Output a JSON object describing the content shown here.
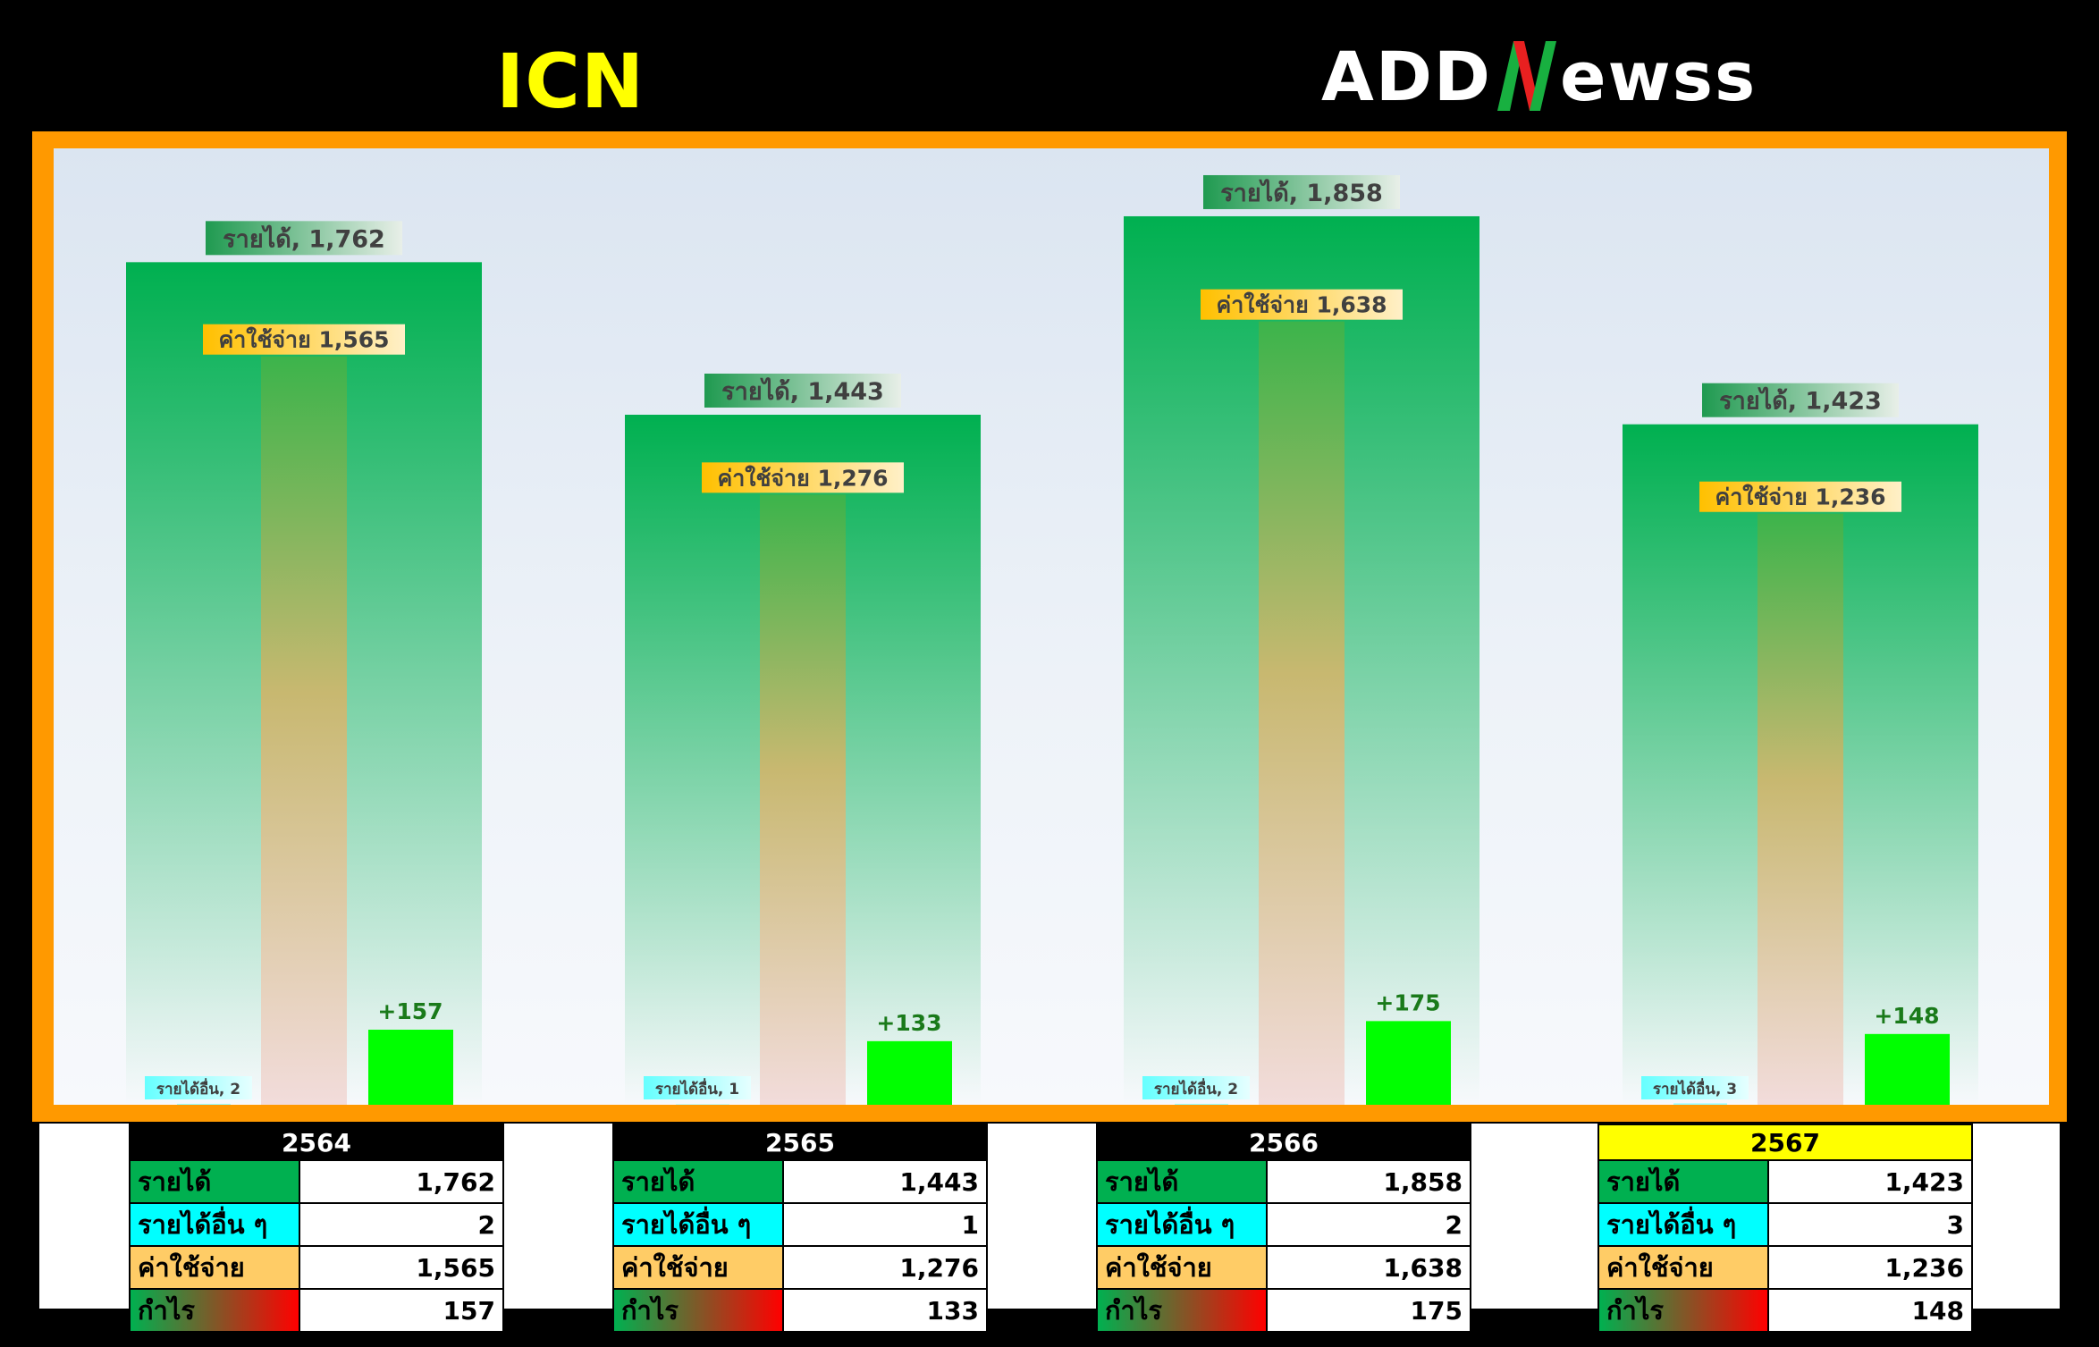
{
  "header": {
    "ticker": "ICN",
    "brand_left": "ADD",
    "brand_right": "ewss"
  },
  "chart_data": {
    "type": "bar",
    "categories": [
      "2564",
      "2565",
      "2566",
      "2567"
    ],
    "series": [
      {
        "name": "รายได้",
        "values": [
          1762,
          1443,
          1858,
          1423
        ]
      },
      {
        "name": "ค่าใช้จ่าย",
        "values": [
          1565,
          1276,
          1638,
          1236
        ]
      },
      {
        "name": "รายได้อื่น",
        "values": [
          2,
          1,
          2,
          3
        ]
      },
      {
        "name": "กำไร",
        "values": [
          157,
          133,
          175,
          148
        ]
      }
    ],
    "labels": {
      "revenue": [
        "รายได้, 1,762",
        "รายได้, 1,443",
        "รายได้, 1,858",
        "รายได้, 1,423"
      ],
      "expense": [
        "ค่าใช้จ่าย 1,565",
        "ค่าใช้จ่าย 1,276",
        "ค่าใช้จ่าย 1,638",
        "ค่าใช้จ่าย 1,236"
      ],
      "other": [
        "รายได้อื่น, 2",
        "รายได้อื่น, 1",
        "รายได้อื่น, 2",
        "รายได้อื่น, 3"
      ],
      "profit": [
        "+157",
        "+133",
        "+175",
        "+148"
      ]
    },
    "ylim": [
      0,
      2000
    ],
    "title": "",
    "xlabel": "",
    "ylabel": "",
    "grid": false,
    "colors": {
      "revenue": "#00b050",
      "expense_top": "#3cb44b",
      "expense_bottom": "#f2dcdb",
      "profit": "#00ff00",
      "other": "#99ffff",
      "frame": "#ff9900"
    }
  },
  "tables": [
    {
      "year": "2564",
      "rows": [
        {
          "label": "รายได้",
          "value": "1,762"
        },
        {
          "label": "รายได้อื่น ๆ",
          "value": "2"
        },
        {
          "label": "ค่าใช้จ่าย",
          "value": "1,565"
        },
        {
          "label": "กำไร",
          "value": "157"
        }
      ]
    },
    {
      "year": "2565",
      "rows": [
        {
          "label": "รายได้",
          "value": "1,443"
        },
        {
          "label": "รายได้อื่น ๆ",
          "value": "1"
        },
        {
          "label": "ค่าใช้จ่าย",
          "value": "1,276"
        },
        {
          "label": "กำไร",
          "value": "133"
        }
      ]
    },
    {
      "year": "2566",
      "rows": [
        {
          "label": "รายได้",
          "value": "1,858"
        },
        {
          "label": "รายได้อื่น ๆ",
          "value": "2"
        },
        {
          "label": "ค่าใช้จ่าย",
          "value": "1,638"
        },
        {
          "label": "กำไร",
          "value": "175"
        }
      ]
    },
    {
      "year": "2567",
      "rows": [
        {
          "label": "รายได้",
          "value": "1,423"
        },
        {
          "label": "รายได้อื่น ๆ",
          "value": "3"
        },
        {
          "label": "ค่าใช้จ่าย",
          "value": "1,236"
        },
        {
          "label": "กำไร",
          "value": "148"
        }
      ]
    }
  ]
}
